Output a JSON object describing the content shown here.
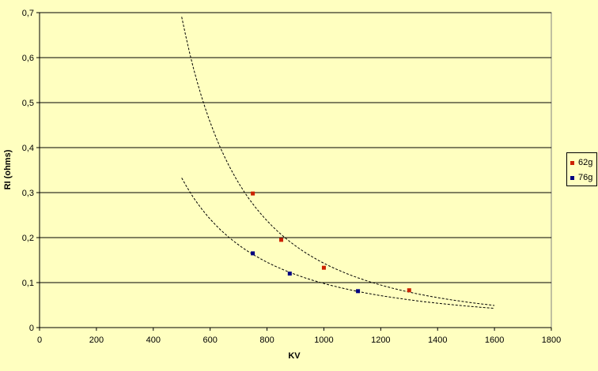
{
  "chart_data": {
    "type": "scatter",
    "title": "",
    "xlabel": "KV",
    "ylabel": "RI (ohms)",
    "xlim": [
      0,
      1800
    ],
    "ylim": [
      0,
      0.7
    ],
    "x_ticks": [
      "0",
      "200",
      "400",
      "600",
      "800",
      "1000",
      "1200",
      "1400",
      "1600",
      "1800"
    ],
    "y_ticks": [
      "0",
      "0,1",
      "0,2",
      "0,3",
      "0,4",
      "0,5",
      "0,6",
      "0,7"
    ],
    "grid": "horizontal",
    "legend_position": "right",
    "background_color": "#ffffc0",
    "series": [
      {
        "name": "62g",
        "color": "#cc2200",
        "points": [
          [
            750,
            0.298
          ],
          [
            850,
            0.195
          ],
          [
            1000,
            0.133
          ],
          [
            1300,
            0.083
          ]
        ],
        "trendline": "dashed",
        "trend_range": [
          500,
          1600
        ]
      },
      {
        "name": "76g",
        "color": "#000080",
        "points": [
          [
            750,
            0.165
          ],
          [
            880,
            0.12
          ],
          [
            1120,
            0.081
          ]
        ],
        "trendline": "dashed",
        "trend_range": [
          500,
          1600
        ]
      }
    ]
  }
}
